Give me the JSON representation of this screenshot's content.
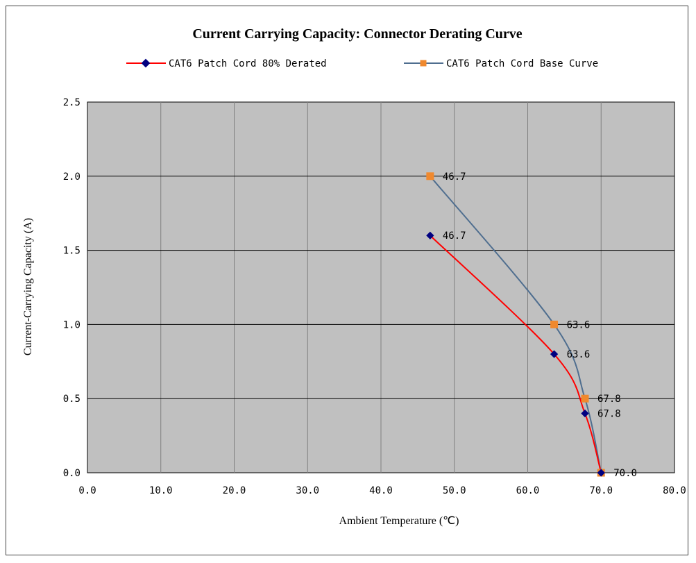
{
  "chart_data": {
    "type": "line",
    "title": "Current Carrying Capacity: Connector Derating Curve",
    "xlabel": "Ambient Temperature (℃)",
    "ylabel": "Current-Carrying Capacity (A)",
    "xlim": [
      0,
      80
    ],
    "ylim": [
      0,
      2.5
    ],
    "x_ticks": [
      "0.0",
      "10.0",
      "20.0",
      "30.0",
      "40.0",
      "50.0",
      "60.0",
      "70.0",
      "80.0"
    ],
    "y_ticks": [
      "0.0",
      "0.5",
      "1.0",
      "1.5",
      "2.0",
      "2.5"
    ],
    "grid": true,
    "legend_position": "top",
    "plot_background": "#c0c0c0",
    "series": [
      {
        "name": "CAT6 Patch Cord 80% Derated",
        "color": "#ff0000",
        "marker": "diamond",
        "marker_color": "#000080",
        "x": [
          46.7,
          63.6,
          67.8,
          70.0
        ],
        "y": [
          1.6,
          0.8,
          0.4,
          0.0
        ],
        "labels": [
          "46.7",
          "63.6",
          "67.8",
          ""
        ]
      },
      {
        "name": "CAT6 Patch Cord Base Curve",
        "color": "#4f6e8f",
        "marker": "square",
        "marker_color": "#f0892e",
        "x": [
          46.7,
          63.6,
          67.8,
          70.0
        ],
        "y": [
          2.0,
          1.0,
          0.5,
          0.0
        ],
        "labels": [
          "46.7",
          "63.6",
          "67.8",
          "70.0"
        ]
      }
    ]
  }
}
